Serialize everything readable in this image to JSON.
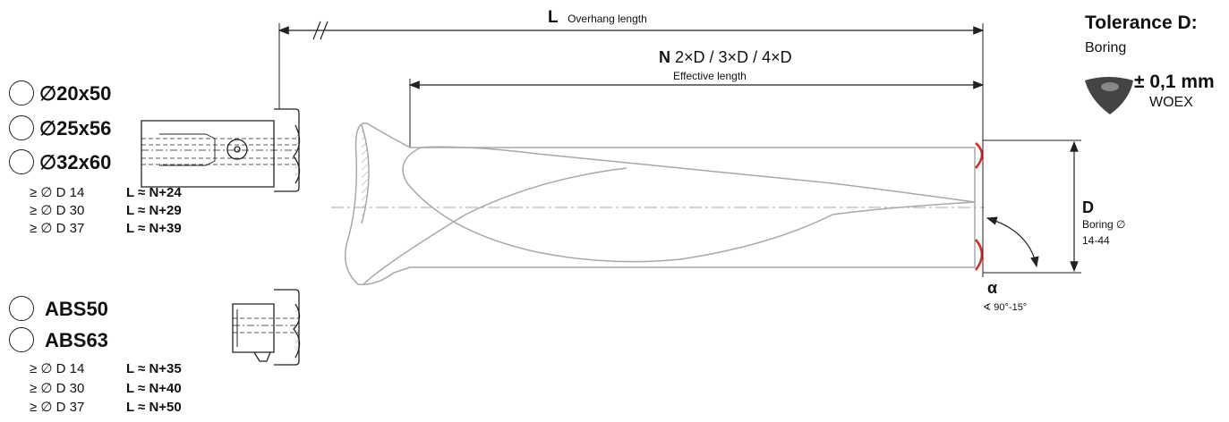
{
  "holders_cylindrical": [
    {
      "label": "∅20x50"
    },
    {
      "label": "∅25x56"
    },
    {
      "label": "∅32x60"
    }
  ],
  "rules_cylindrical": [
    {
      "d": "≥ ∅ D 14",
      "f": "L ≈ N+24"
    },
    {
      "d": "≥ ∅ D 30",
      "f": "L ≈ N+29"
    },
    {
      "d": "≥ ∅ D 37",
      "f": "L ≈ N+39"
    }
  ],
  "holders_abs": [
    {
      "label": "ABS50"
    },
    {
      "label": "ABS63"
    }
  ],
  "rules_abs": [
    {
      "d": "≥ ∅ D 14",
      "f": "L ≈ N+35"
    },
    {
      "d": "≥ ∅ D 30",
      "f": "L ≈ N+40"
    },
    {
      "d": "≥ ∅ D 37",
      "f": "L ≈ N+50"
    }
  ],
  "dim_L": {
    "symbol": "L",
    "text": "Overhang length"
  },
  "dim_N": {
    "symbol": "N",
    "values": "2×D / 3×D / 4×D",
    "text": "Effective length"
  },
  "dim_D": {
    "symbol": "D",
    "line1": "Boring ∅",
    "line2": "14-44"
  },
  "dim_alpha": {
    "symbol": "α",
    "text": "∢ 90°-15°"
  },
  "tolerance": {
    "title": "Tolerance D:",
    "subtitle": "Boring",
    "value": "± 0,1 mm",
    "insert": "WOEX"
  },
  "colors": {
    "line": "#222222",
    "tool": "#a8a8a8",
    "accent": "#e0251b"
  }
}
